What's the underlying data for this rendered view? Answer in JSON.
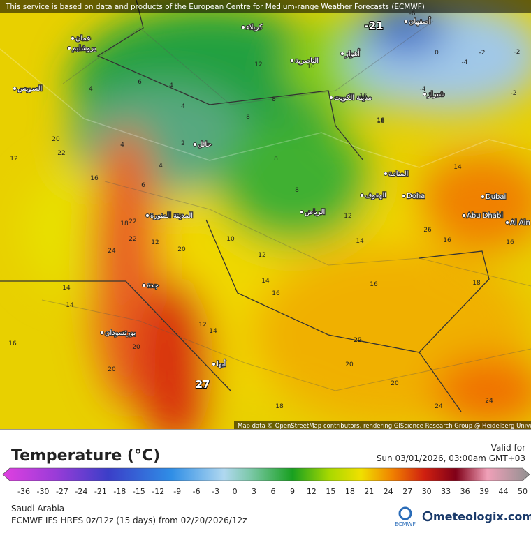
{
  "header": {
    "notice": "This service is based on data and products of the European Centre for Medium-range Weather Forecasts (ECMWF)",
    "attribution": "Map data © OpenStreetMap contributors, rendering GIScience Research Group @ Heidelberg University"
  },
  "map": {
    "cities": [
      "عمان",
      "يروشليم",
      "كربلاء",
      "أصفهان",
      "الناصرية",
      "أهواز",
      "مدينة الكويت",
      "شيراز",
      "السويس",
      "حائل",
      "المنامة",
      "الهفوف",
      "Doha",
      "Dubai",
      "Abu Dhabi",
      "Al Ain",
      "المدينة المنورة",
      "الرياض",
      "جدة",
      "بورتسودان",
      "أبها"
    ],
    "labels": [
      -21,
      -6,
      -2,
      0,
      -4,
      -2,
      -4,
      -2,
      4,
      6,
      4,
      4,
      8,
      8,
      10,
      12,
      16,
      2,
      4,
      4,
      6,
      8,
      8,
      10,
      12,
      18,
      14,
      16,
      18,
      22,
      24,
      22,
      20,
      12,
      14,
      16,
      18,
      20,
      20,
      14,
      12,
      16,
      18,
      20,
      22,
      24,
      27,
      14,
      16,
      12,
      18,
      20,
      14,
      16,
      20,
      16,
      22,
      26,
      12,
      14,
      20,
      24
    ]
  },
  "legend": {
    "title": "Temperature (°C)",
    "ticks": [
      -36,
      -30,
      -27,
      -24,
      -21,
      -18,
      -15,
      -12,
      -9,
      -6,
      -3,
      0,
      3,
      6,
      9,
      12,
      15,
      18,
      21,
      24,
      27,
      30,
      33,
      36,
      39,
      44,
      50
    ]
  },
  "footer": {
    "valid_label": "Valid for",
    "valid_time": "Sun 03/01/2026, 03:00am GMT+03",
    "region": "Saudi Arabia",
    "model": "ECMWF IFS HRES 0z/12z (15 days) from 02/20/2026/12z",
    "ecmwf": "ECMWF",
    "brand": "meteologix.com"
  }
}
